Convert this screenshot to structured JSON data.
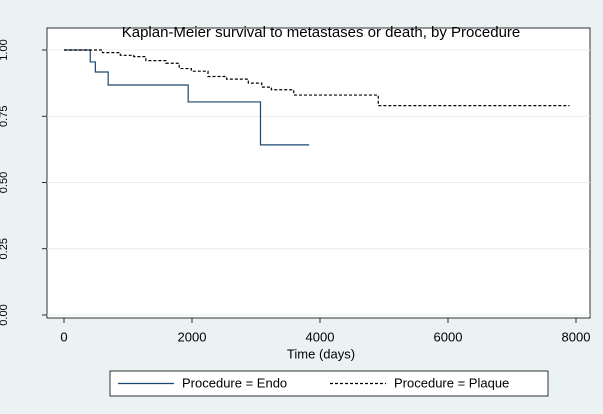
{
  "chart_data": {
    "type": "line",
    "step": true,
    "title": "Kaplan-Meier survival to metastases or death, by Procedure",
    "xlabel": "Time (days)",
    "xlim": [
      0,
      8000
    ],
    "xticks": [
      0,
      2000,
      4000,
      6000,
      8000
    ],
    "ylim": [
      0,
      1
    ],
    "yticks": [
      {
        "value": 0,
        "label": "0.00"
      },
      {
        "value": 0.25,
        "label": "0.25"
      },
      {
        "value": 0.5,
        "label": "0.50"
      },
      {
        "value": 0.75,
        "label": "0.75"
      },
      {
        "value": 1,
        "label": "1.00"
      }
    ],
    "grid": true,
    "legend": "bottom",
    "series": [
      {
        "name": "Procedure = Endo",
        "color": "#1a476f",
        "linestyle": "solid",
        "x": [
          0,
          410,
          490,
          690,
          1940,
          3070,
          3830
        ],
        "values": [
          1,
          0.955,
          0.917,
          0.868,
          0.804,
          0.642,
          0.642
        ]
      },
      {
        "name": "Procedure = Plaque",
        "color": "#000000",
        "linestyle": "dashed",
        "x": [
          0,
          600,
          880,
          1090,
          1280,
          1590,
          1800,
          1990,
          2250,
          2540,
          2880,
          3090,
          3240,
          3590,
          4910,
          7900
        ],
        "values": [
          1,
          0.99,
          0.98,
          0.975,
          0.96,
          0.95,
          0.93,
          0.92,
          0.9,
          0.89,
          0.875,
          0.86,
          0.85,
          0.83,
          0.79,
          0.79
        ]
      }
    ]
  }
}
